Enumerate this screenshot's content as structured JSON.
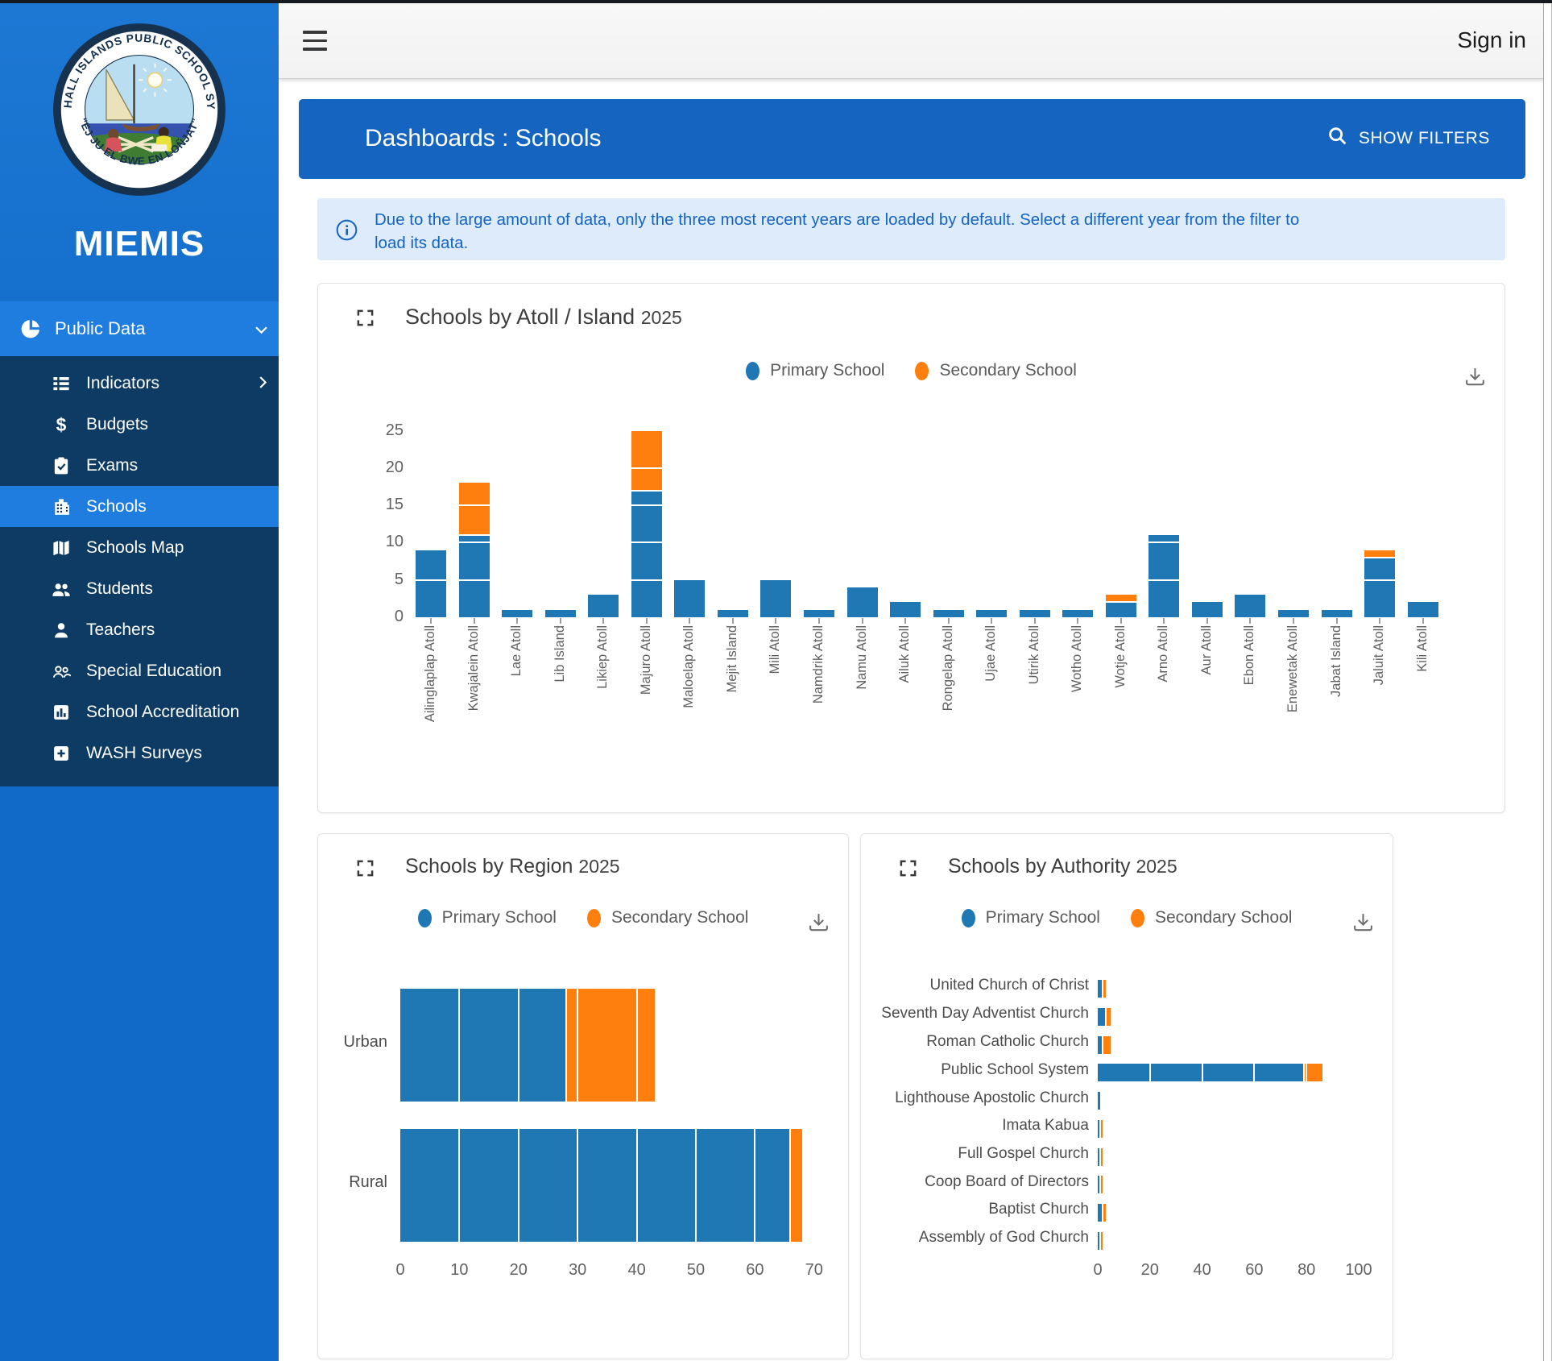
{
  "topbar": {
    "sign_in": "Sign in"
  },
  "sidebar": {
    "brand": "MIEMIS",
    "logo": {
      "ring_text": "MARSHALL ISLANDS PUBLIC SCHOOL SYSTEM",
      "motto": "“EJ JU EL BWE EN LOÑJAT”"
    },
    "section": {
      "label": "Public Data"
    },
    "items": [
      {
        "label": "Indicators",
        "icon": "list",
        "chevron": true,
        "active": false
      },
      {
        "label": "Budgets",
        "icon": "dollar",
        "chevron": false,
        "active": false
      },
      {
        "label": "Exams",
        "icon": "clipboard-check",
        "chevron": false,
        "active": false
      },
      {
        "label": "Schools",
        "icon": "building",
        "chevron": false,
        "active": true
      },
      {
        "label": "Schools Map",
        "icon": "map",
        "chevron": false,
        "active": false
      },
      {
        "label": "Students",
        "icon": "people",
        "chevron": false,
        "active": false
      },
      {
        "label": "Teachers",
        "icon": "person",
        "chevron": false,
        "active": false
      },
      {
        "label": "Special Education",
        "icon": "group",
        "chevron": false,
        "active": false
      },
      {
        "label": "School Accreditation",
        "icon": "chart-box",
        "chevron": false,
        "active": false
      },
      {
        "label": "WASH Surveys",
        "icon": "plus-box",
        "chevron": false,
        "active": false
      }
    ]
  },
  "header": {
    "title": "Dashboards : Schools",
    "filters_label": "SHOW FILTERS"
  },
  "notice": {
    "text": "Due to the large amount of data, only the three most recent years are loaded by default. Select a different year from the filter to load its data."
  },
  "legend": {
    "primary": "Primary School",
    "secondary": "Secondary School"
  },
  "colors": {
    "primary_series": "#1f77b4",
    "secondary_series": "#ff7f0e",
    "header_blue": "#1565c0",
    "sidebar_navy": "#0d3b63",
    "sidebar_active": "#1f7de0",
    "notice_bg": "#ddebfb"
  },
  "chart_data": [
    {
      "type": "bar",
      "orientation": "vertical",
      "stacked": true,
      "title": "Schools by Atoll / Island",
      "year": "2025",
      "xlabel": "",
      "ylabel": "",
      "ylim": [
        0,
        25
      ],
      "yticks": [
        0,
        5,
        10,
        15,
        20,
        25
      ],
      "grid": "white-lines-over-bars",
      "legend_position": "top-center",
      "categories": [
        "Ailinglaplap Atoll",
        "Kwajalein Atoll",
        "Lae Atoll",
        "Lib Island",
        "Likiep Atoll",
        "Majuro Atoll",
        "Maloelap Atoll",
        "Mejit Island",
        "Mili Atoll",
        "Namdrik Atoll",
        "Namu Atoll",
        "Ailuk Atoll",
        "Rongelap Atoll",
        "Ujae Atoll",
        "Utirik Atoll",
        "Wotho Atoll",
        "Wotje Atoll",
        "Arno Atoll",
        "Aur Atoll",
        "Ebon Atoll",
        "Enewetak Atoll",
        "Jabat Island",
        "Jaluit Atoll",
        "Kili Atoll"
      ],
      "series": [
        {
          "name": "Primary School",
          "values": [
            9,
            11,
            1,
            1,
            3,
            17,
            5,
            1,
            5,
            1,
            4,
            2,
            1,
            1,
            1,
            1,
            2,
            11,
            2,
            3,
            1,
            1,
            8,
            2
          ]
        },
        {
          "name": "Secondary School",
          "values": [
            0,
            7,
            0,
            0,
            0,
            8,
            0,
            0,
            0,
            0,
            0,
            0,
            0,
            0,
            0,
            0,
            1,
            0,
            0,
            0,
            0,
            0,
            1,
            0
          ]
        }
      ]
    },
    {
      "type": "bar",
      "orientation": "horizontal",
      "stacked": true,
      "title": "Schools by Region",
      "year": "2025",
      "xlabel": "",
      "ylabel": "",
      "xlim": [
        0,
        70
      ],
      "xticks": [
        0,
        10,
        20,
        30,
        40,
        50,
        60,
        70
      ],
      "grid": "white-lines-over-bars",
      "legend_position": "top-center",
      "categories": [
        "Urban",
        "Rural"
      ],
      "series": [
        {
          "name": "Primary School",
          "values": [
            28,
            66
          ]
        },
        {
          "name": "Secondary School",
          "values": [
            15,
            2
          ]
        }
      ]
    },
    {
      "type": "bar",
      "orientation": "horizontal",
      "stacked": true,
      "title": "Schools by Authority",
      "year": "2025",
      "xlabel": "",
      "ylabel": "",
      "xlim": [
        0,
        100
      ],
      "xticks": [
        0,
        20,
        40,
        60,
        80,
        100
      ],
      "grid": "white-lines-over-bars",
      "legend_position": "top-center",
      "categories": [
        "United Church of Christ",
        "Seventh Day Adventist Church",
        "Roman Catholic Church",
        "Public School System",
        "Lighthouse Apostolic Church",
        "Imata Kabua",
        "Full Gospel Church",
        "Coop Board of Directors",
        "Baptist Church",
        "Assembly of God Church"
      ],
      "series": [
        {
          "name": "Primary School",
          "values": [
            2,
            3,
            2,
            79,
            1,
            1,
            1,
            1,
            2,
            1
          ]
        },
        {
          "name": "Secondary School",
          "values": [
            1,
            2,
            3,
            7,
            0,
            1,
            1,
            1,
            1,
            1
          ]
        }
      ]
    }
  ]
}
